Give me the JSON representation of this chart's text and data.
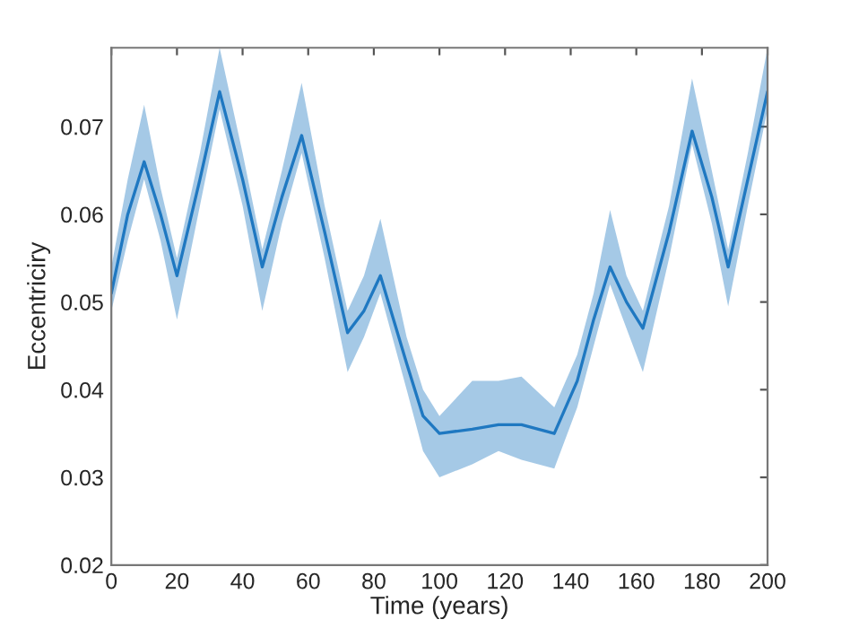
{
  "chart_data": {
    "type": "line",
    "xlabel": "Time (years)",
    "ylabel": "Eccentriciry",
    "x": [
      0,
      5,
      10,
      15,
      20,
      27,
      33,
      40,
      46,
      52,
      58,
      65,
      72,
      77,
      82,
      90,
      95,
      100,
      110,
      118,
      125,
      135,
      142,
      147,
      152,
      157,
      162,
      170,
      177,
      183,
      188,
      194,
      200
    ],
    "series": [
      {
        "color": "#1f78c1",
        "values": [
          0.051,
          0.06,
          0.066,
          0.06,
          0.053,
          0.064,
          0.074,
          0.064,
          0.054,
          0.062,
          0.069,
          0.058,
          0.0465,
          0.049,
          0.053,
          0.043,
          0.037,
          0.035,
          0.0355,
          0.036,
          0.036,
          0.035,
          0.041,
          0.048,
          0.054,
          0.05,
          0.047,
          0.058,
          0.0695,
          0.062,
          0.054,
          0.064,
          0.074
        ],
        "lower": [
          0.049,
          0.057,
          0.064,
          0.057,
          0.048,
          0.061,
          0.072,
          0.061,
          0.049,
          0.059,
          0.067,
          0.055,
          0.042,
          0.046,
          0.051,
          0.04,
          0.033,
          0.03,
          0.0315,
          0.033,
          0.032,
          0.031,
          0.038,
          0.045,
          0.052,
          0.047,
          0.042,
          0.055,
          0.068,
          0.059,
          0.0495,
          0.061,
          0.072
        ],
        "upper": [
          0.054,
          0.064,
          0.0725,
          0.063,
          0.055,
          0.067,
          0.079,
          0.067,
          0.056,
          0.065,
          0.075,
          0.061,
          0.049,
          0.053,
          0.0595,
          0.046,
          0.04,
          0.037,
          0.041,
          0.041,
          0.0415,
          0.038,
          0.044,
          0.051,
          0.0605,
          0.053,
          0.049,
          0.061,
          0.0755,
          0.065,
          0.056,
          0.067,
          0.079
        ]
      }
    ],
    "xlim": [
      0,
      200
    ],
    "xticks": [
      0,
      20,
      40,
      60,
      80,
      100,
      120,
      140,
      160,
      180,
      200
    ],
    "ylim": [
      0.02,
      0.079
    ],
    "yticks": [
      0.02,
      0.03,
      0.04,
      0.05,
      0.06,
      0.07
    ],
    "grid": false,
    "marker": "none",
    "line_style": "solid"
  }
}
